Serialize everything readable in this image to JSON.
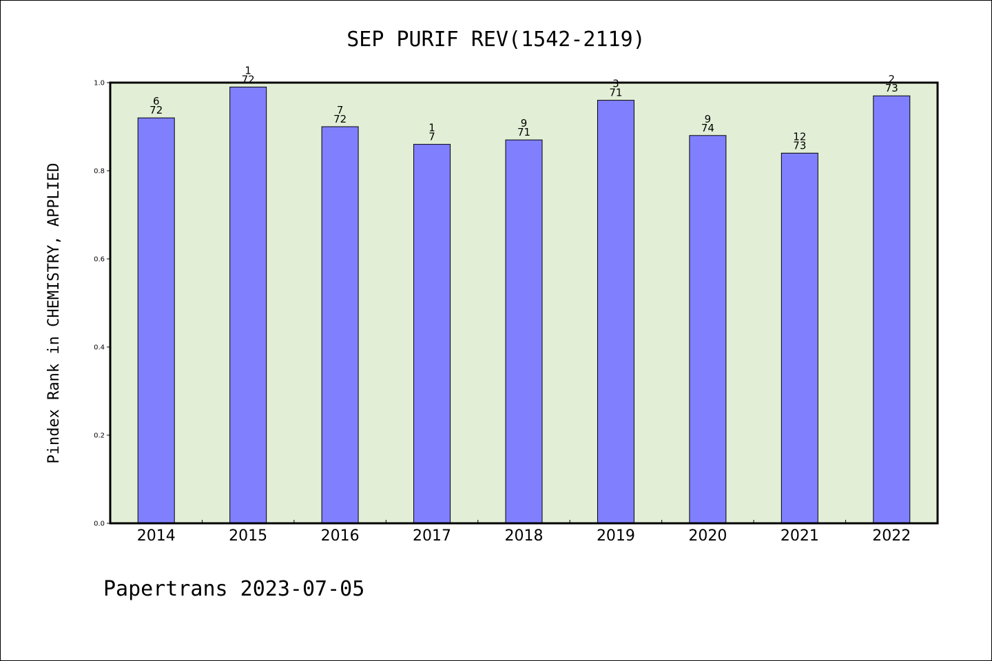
{
  "chart_data": {
    "type": "bar",
    "title": "SEP PURIF REV(1542-2119)",
    "xlabel": "",
    "ylabel": "Pindex Rank in CHEMISTRY, APPLIED",
    "ylim": [
      0,
      1.0
    ],
    "yticks": [
      "0.0",
      "0.2",
      "0.4",
      "0.6",
      "0.8",
      "1.0"
    ],
    "categories": [
      "2014",
      "2015",
      "2016",
      "2017",
      "2018",
      "2019",
      "2020",
      "2021",
      "2022"
    ],
    "values": [
      0.92,
      0.99,
      0.9,
      0.86,
      0.87,
      0.96,
      0.88,
      0.84,
      0.97
    ],
    "rank_labels": [
      {
        "rank": "6",
        "total": "72"
      },
      {
        "rank": "1",
        "total": "72"
      },
      {
        "rank": "7",
        "total": "72"
      },
      {
        "rank": "1",
        "total": "7"
      },
      {
        "rank": "9",
        "total": "71"
      },
      {
        "rank": "3",
        "total": "71"
      },
      {
        "rank": "9",
        "total": "74"
      },
      {
        "rank": "12",
        "total": "73"
      },
      {
        "rank": "2",
        "total": "73"
      }
    ],
    "grid": false,
    "colors": {
      "bar": "#8080ff",
      "plot_bg": "#e2efd6"
    }
  },
  "footer": "Papertrans 2023-07-05"
}
